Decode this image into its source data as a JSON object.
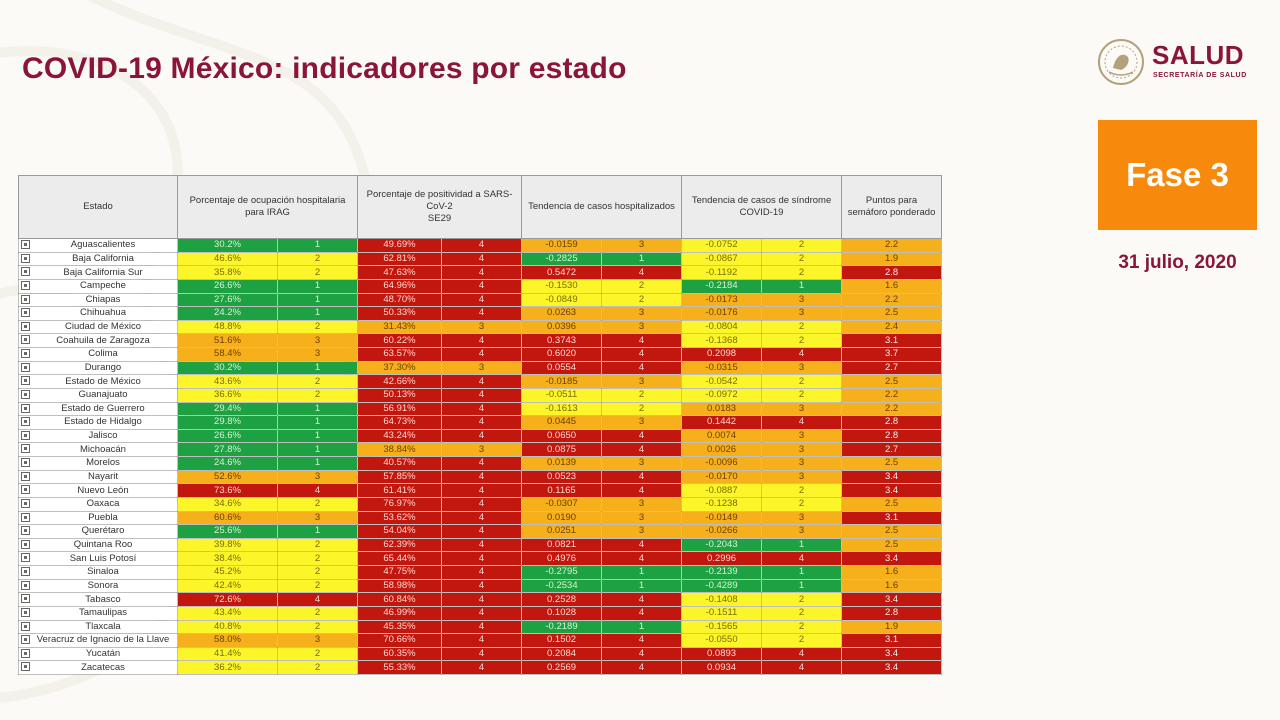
{
  "header": {
    "title": "COVID-19 México: indicadores por estado"
  },
  "logo": {
    "brand": "SALUD",
    "subtitle": "SECRETARÍA DE SALUD"
  },
  "fase": {
    "label": "Fase 3"
  },
  "date": {
    "text": "31 julio, 2020"
  },
  "colors": {
    "1": "#1ea143",
    "2": "#fbf52a",
    "3": "#f6b01b",
    "4": "#c2170e",
    "accent": "#8a1538",
    "fase_bg": "#f7890c"
  },
  "table": {
    "headers": {
      "estado": "Estado",
      "ocupacion": "Porcentaje de ocupación hospitalaria para IRAG",
      "positividad_l1": "Porcentaje de positividad a SARS-",
      "positividad_l2": "CoV-2",
      "positividad_l3": "SE29",
      "hosp": "Tendencia de casos hospitalizados",
      "sindrome": "Tendencia de casos de síndrome COVID-19",
      "puntos": "Puntos para semáforo ponderado"
    },
    "rows": [
      {
        "estado": "Aguascalientes",
        "ocup": "30.2%",
        "ocup_n": "1",
        "pos": "49.69%",
        "pos_n": "4",
        "hosp": "-0.0159",
        "hosp_n": "3",
        "sind": "-0.0752",
        "sind_n": "2",
        "puntos": "2.2",
        "puntos_c": "3"
      },
      {
        "estado": "Baja California",
        "ocup": "46.6%",
        "ocup_n": "2",
        "pos": "62.81%",
        "pos_n": "4",
        "hosp": "-0.2825",
        "hosp_n": "1",
        "sind": "-0.0867",
        "sind_n": "2",
        "puntos": "1.9",
        "puntos_c": "3"
      },
      {
        "estado": "Baja California Sur",
        "ocup": "35.8%",
        "ocup_n": "2",
        "pos": "47.63%",
        "pos_n": "4",
        "hosp": "0.5472",
        "hosp_n": "4",
        "sind": "-0.1192",
        "sind_n": "2",
        "puntos": "2.8",
        "puntos_c": "4"
      },
      {
        "estado": "Campeche",
        "ocup": "26.6%",
        "ocup_n": "1",
        "pos": "64.96%",
        "pos_n": "4",
        "hosp": "-0.1530",
        "hosp_n": "2",
        "sind": "-0.2184",
        "sind_n": "1",
        "puntos": "1.6",
        "puntos_c": "3"
      },
      {
        "estado": "Chiapas",
        "ocup": "27.6%",
        "ocup_n": "1",
        "pos": "48.70%",
        "pos_n": "4",
        "hosp": "-0.0849",
        "hosp_n": "2",
        "sind": "-0.0173",
        "sind_n": "3",
        "puntos": "2.2",
        "puntos_c": "3"
      },
      {
        "estado": "Chihuahua",
        "ocup": "24.2%",
        "ocup_n": "1",
        "pos": "50.33%",
        "pos_n": "4",
        "hosp": "0.0263",
        "hosp_n": "3",
        "sind": "-0.0176",
        "sind_n": "3",
        "puntos": "2.5",
        "puntos_c": "3"
      },
      {
        "estado": "Ciudad de México",
        "ocup": "48.8%",
        "ocup_n": "2",
        "pos": "31.43%",
        "pos_n": "3",
        "hosp": "0.0396",
        "hosp_n": "3",
        "sind": "-0.0804",
        "sind_n": "2",
        "puntos": "2.4",
        "puntos_c": "3"
      },
      {
        "estado": "Coahuila de Zaragoza",
        "ocup": "51.6%",
        "ocup_n": "3",
        "pos": "60.22%",
        "pos_n": "4",
        "hosp": "0.3743",
        "hosp_n": "4",
        "sind": "-0.1368",
        "sind_n": "2",
        "puntos": "3.1",
        "puntos_c": "4"
      },
      {
        "estado": "Colima",
        "ocup": "58.4%",
        "ocup_n": "3",
        "pos": "63.57%",
        "pos_n": "4",
        "hosp": "0.6020",
        "hosp_n": "4",
        "sind": "0.2098",
        "sind_n": "4",
        "puntos": "3.7",
        "puntos_c": "4"
      },
      {
        "estado": "Durango",
        "ocup": "30.2%",
        "ocup_n": "1",
        "pos": "37.30%",
        "pos_n": "3",
        "hosp": "0.0554",
        "hosp_n": "4",
        "sind": "-0.0315",
        "sind_n": "3",
        "puntos": "2.7",
        "puntos_c": "4"
      },
      {
        "estado": "Estado de México",
        "ocup": "43.6%",
        "ocup_n": "2",
        "pos": "42.66%",
        "pos_n": "4",
        "hosp": "-0.0185",
        "hosp_n": "3",
        "sind": "-0.0542",
        "sind_n": "2",
        "puntos": "2.5",
        "puntos_c": "3"
      },
      {
        "estado": "Guanajuato",
        "ocup": "36.6%",
        "ocup_n": "2",
        "pos": "50.13%",
        "pos_n": "4",
        "hosp": "-0.0511",
        "hosp_n": "2",
        "sind": "-0.0972",
        "sind_n": "2",
        "puntos": "2.2",
        "puntos_c": "3"
      },
      {
        "estado": "Estado de Guerrero",
        "ocup": "29.4%",
        "ocup_n": "1",
        "pos": "56.91%",
        "pos_n": "4",
        "hosp": "-0.1613",
        "hosp_n": "2",
        "sind": "0.0183",
        "sind_n": "3",
        "puntos": "2.2",
        "puntos_c": "3"
      },
      {
        "estado": "Estado de Hidalgo",
        "ocup": "29.8%",
        "ocup_n": "1",
        "pos": "64.73%",
        "pos_n": "4",
        "hosp": "0.0445",
        "hosp_n": "3",
        "sind": "0.1442",
        "sind_n": "4",
        "puntos": "2.8",
        "puntos_c": "4"
      },
      {
        "estado": "Jalisco",
        "ocup": "26.6%",
        "ocup_n": "1",
        "pos": "43.24%",
        "pos_n": "4",
        "hosp": "0.0650",
        "hosp_n": "4",
        "sind": "0.0074",
        "sind_n": "3",
        "puntos": "2.8",
        "puntos_c": "4"
      },
      {
        "estado": "Michoacán",
        "ocup": "27.8%",
        "ocup_n": "1",
        "pos": "38.84%",
        "pos_n": "3",
        "hosp": "0.0875",
        "hosp_n": "4",
        "sind": "0.0026",
        "sind_n": "3",
        "puntos": "2.7",
        "puntos_c": "4"
      },
      {
        "estado": "Morelos",
        "ocup": "24.6%",
        "ocup_n": "1",
        "pos": "40.57%",
        "pos_n": "4",
        "hosp": "0.0139",
        "hosp_n": "3",
        "sind": "-0.0096",
        "sind_n": "3",
        "puntos": "2.5",
        "puntos_c": "3"
      },
      {
        "estado": "Nayarit",
        "ocup": "52.6%",
        "ocup_n": "3",
        "pos": "57.85%",
        "pos_n": "4",
        "hosp": "0.0523",
        "hosp_n": "4",
        "sind": "-0.0170",
        "sind_n": "3",
        "puntos": "3.4",
        "puntos_c": "4"
      },
      {
        "estado": "Nuevo León",
        "ocup": "73.6%",
        "ocup_n": "4",
        "pos": "61.41%",
        "pos_n": "4",
        "hosp": "0.1165",
        "hosp_n": "4",
        "sind": "-0.0887",
        "sind_n": "2",
        "puntos": "3.4",
        "puntos_c": "4"
      },
      {
        "estado": "Oaxaca",
        "ocup": "34.6%",
        "ocup_n": "2",
        "pos": "76.97%",
        "pos_n": "4",
        "hosp": "-0.0307",
        "hosp_n": "3",
        "sind": "-0.1238",
        "sind_n": "2",
        "puntos": "2.5",
        "puntos_c": "3"
      },
      {
        "estado": "Puebla",
        "ocup": "60.6%",
        "ocup_n": "3",
        "pos": "53.62%",
        "pos_n": "4",
        "hosp": "0.0190",
        "hosp_n": "3",
        "sind": "-0.0149",
        "sind_n": "3",
        "puntos": "3.1",
        "puntos_c": "4"
      },
      {
        "estado": "Querétaro",
        "ocup": "25.6%",
        "ocup_n": "1",
        "pos": "54.04%",
        "pos_n": "4",
        "hosp": "0.0251",
        "hosp_n": "3",
        "sind": "-0.0266",
        "sind_n": "3",
        "puntos": "2.5",
        "puntos_c": "3"
      },
      {
        "estado": "Quintana Roo",
        "ocup": "39.8%",
        "ocup_n": "2",
        "pos": "62.39%",
        "pos_n": "4",
        "hosp": "0.0821",
        "hosp_n": "4",
        "sind": "-0.2043",
        "sind_n": "1",
        "puntos": "2.5",
        "puntos_c": "3"
      },
      {
        "estado": "San Luis Potosí",
        "ocup": "38.4%",
        "ocup_n": "2",
        "pos": "65.44%",
        "pos_n": "4",
        "hosp": "0.4976",
        "hosp_n": "4",
        "sind": "0.2996",
        "sind_n": "4",
        "puntos": "3.4",
        "puntos_c": "4"
      },
      {
        "estado": "Sinaloa",
        "ocup": "45.2%",
        "ocup_n": "2",
        "pos": "47.75%",
        "pos_n": "4",
        "hosp": "-0.2795",
        "hosp_n": "1",
        "sind": "-0.2139",
        "sind_n": "1",
        "puntos": "1.6",
        "puntos_c": "3"
      },
      {
        "estado": "Sonora",
        "ocup": "42.4%",
        "ocup_n": "2",
        "pos": "58.98%",
        "pos_n": "4",
        "hosp": "-0.2534",
        "hosp_n": "1",
        "sind": "-0.4289",
        "sind_n": "1",
        "puntos": "1.6",
        "puntos_c": "3"
      },
      {
        "estado": "Tabasco",
        "ocup": "72.6%",
        "ocup_n": "4",
        "pos": "60.84%",
        "pos_n": "4",
        "hosp": "0.2528",
        "hosp_n": "4",
        "sind": "-0.1408",
        "sind_n": "2",
        "puntos": "3.4",
        "puntos_c": "4"
      },
      {
        "estado": "Tamaulipas",
        "ocup": "43.4%",
        "ocup_n": "2",
        "pos": "46.99%",
        "pos_n": "4",
        "hosp": "0.1028",
        "hosp_n": "4",
        "sind": "-0.1511",
        "sind_n": "2",
        "puntos": "2.8",
        "puntos_c": "4"
      },
      {
        "estado": "Tlaxcala",
        "ocup": "40.8%",
        "ocup_n": "2",
        "pos": "45.35%",
        "pos_n": "4",
        "hosp": "-0.2189",
        "hosp_n": "1",
        "sind": "-0.1565",
        "sind_n": "2",
        "puntos": "1.9",
        "puntos_c": "3"
      },
      {
        "estado": "Veracruz de Ignacio de la Llave",
        "ocup": "58.0%",
        "ocup_n": "3",
        "pos": "70.66%",
        "pos_n": "4",
        "hosp": "0.1502",
        "hosp_n": "4",
        "sind": "-0.0550",
        "sind_n": "2",
        "puntos": "3.1",
        "puntos_c": "4"
      },
      {
        "estado": "Yucatán",
        "ocup": "41.4%",
        "ocup_n": "2",
        "pos": "60.35%",
        "pos_n": "4",
        "hosp": "0.2084",
        "hosp_n": "4",
        "sind": "0.0893",
        "sind_n": "4",
        "puntos": "3.4",
        "puntos_c": "4"
      },
      {
        "estado": "Zacatecas",
        "ocup": "36.2%",
        "ocup_n": "2",
        "pos": "55.33%",
        "pos_n": "4",
        "hosp": "0.2569",
        "hosp_n": "4",
        "sind": "0.0934",
        "sind_n": "4",
        "puntos": "3.4",
        "puntos_c": "4"
      }
    ]
  }
}
